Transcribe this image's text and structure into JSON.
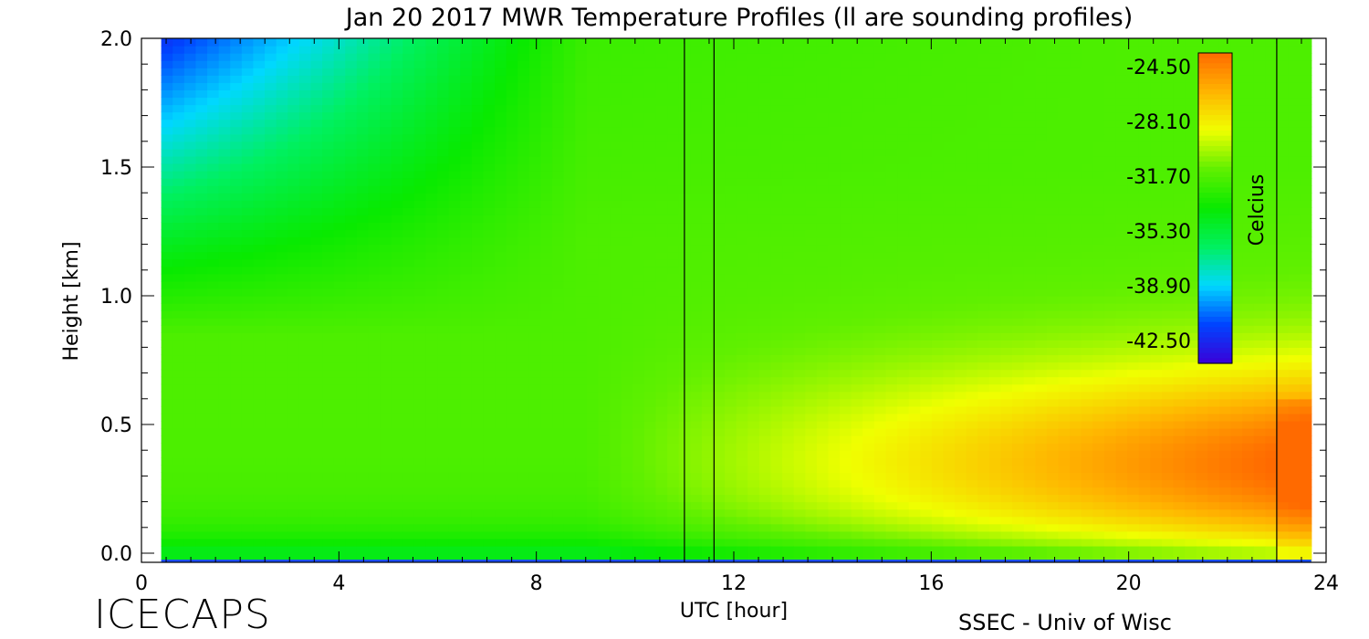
{
  "chart_data": {
    "type": "heatmap",
    "title": "Jan 20 2017 MWR Temperature Profiles (ll are sounding profiles)",
    "xlabel": "UTC [hour]",
    "ylabel": "Height [km]",
    "xlim": [
      0,
      24
    ],
    "ylim": [
      0,
      2
    ],
    "x_ticks": [
      "0",
      "4",
      "8",
      "12",
      "16",
      "20",
      "24"
    ],
    "y_ticks": [
      "0.0",
      "0.5",
      "1.0",
      "1.5",
      "2.0"
    ],
    "x_minor_step": 0.5,
    "y_minor_step": 0.1,
    "data_x_range": [
      0.4,
      23.7
    ],
    "sounding_lines_utc": [
      11.0,
      11.6,
      23.0
    ],
    "colorbar": {
      "label": "Celcius",
      "vmin": -44.0,
      "vmax": -23.6,
      "tick_labels": [
        "-24.50",
        "-28.10",
        "-31.70",
        "-35.30",
        "-38.90",
        "-42.50"
      ],
      "tick_values": [
        -24.5,
        -28.1,
        -31.7,
        -35.3,
        -38.9,
        -42.5
      ],
      "colors": [
        "#3a00d8",
        "#0044ff",
        "#00d8ff",
        "#00f060",
        "#08ea00",
        "#60f000",
        "#f0ff00",
        "#ffb400",
        "#ff6a00"
      ]
    },
    "grid": false
  },
  "footer": {
    "left": "ICECAPS",
    "right": "SSEC - Univ of Wisc"
  }
}
